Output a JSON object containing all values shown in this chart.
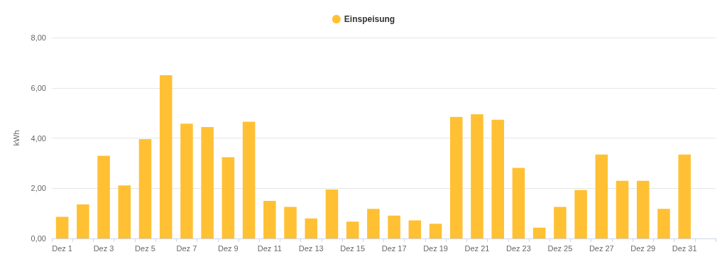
{
  "chart_data": {
    "type": "bar",
    "ylabel": "kWh",
    "categories": [
      "Dez 1",
      null,
      "Dez 3",
      null,
      "Dez 5",
      null,
      "Dez 7",
      null,
      "Dez 9",
      null,
      "Dez 11",
      null,
      "Dez 13",
      null,
      "Dez 15",
      null,
      "Dez 17",
      null,
      "Dez 19",
      null,
      "Dez 21",
      null,
      "Dez 23",
      null,
      "Dez 25",
      null,
      "Dez 27",
      null,
      "Dez 29",
      null,
      "Dez 31",
      null
    ],
    "series": [
      {
        "name": "Einspeisung",
        "color": "#ffc033",
        "values": [
          0.86,
          1.36,
          3.29,
          2.11,
          3.96,
          6.5,
          4.57,
          4.44,
          3.24,
          4.65,
          1.5,
          1.26,
          0.8,
          1.95,
          0.67,
          1.18,
          0.91,
          0.72,
          0.59,
          4.84,
          4.95,
          4.73,
          2.81,
          0.43,
          1.26,
          1.93,
          3.34,
          2.3,
          2.3,
          1.18,
          3.34,
          null
        ]
      }
    ],
    "ylim": [
      0,
      8
    ],
    "yticks": [
      {
        "value": 0,
        "label": "0,00"
      },
      {
        "value": 2,
        "label": "2,00"
      },
      {
        "value": 4,
        "label": "4,00"
      },
      {
        "value": 6,
        "label": "6,00"
      },
      {
        "value": 8,
        "label": "8,00"
      }
    ],
    "grid": "y",
    "legend": "top"
  }
}
